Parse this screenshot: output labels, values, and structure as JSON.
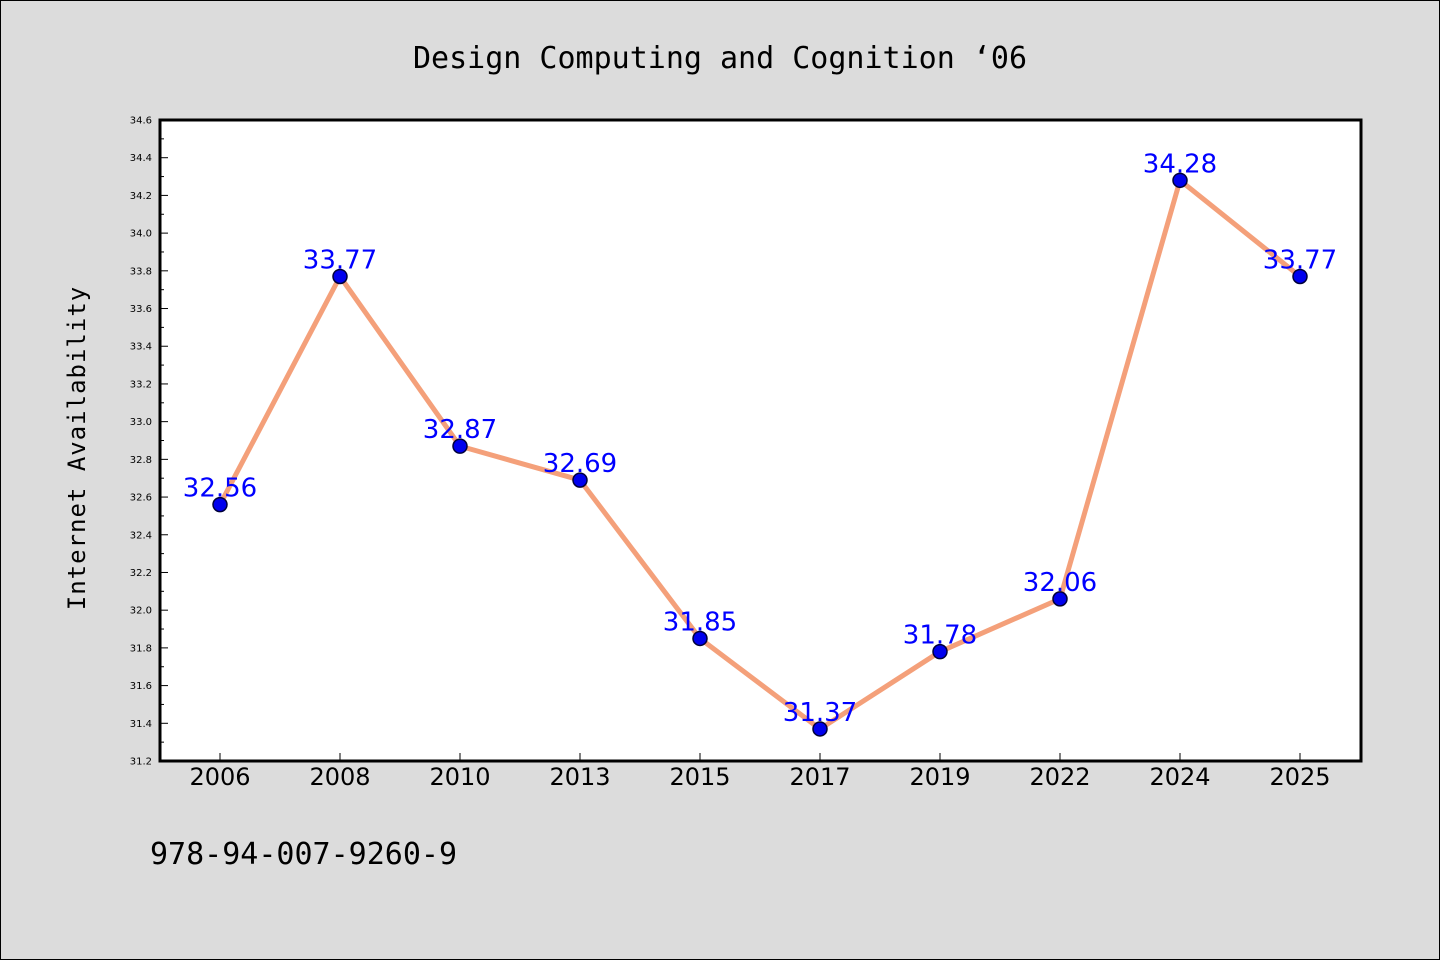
{
  "chart_data": {
    "type": "line",
    "title": "Design Computing and Cognition  ‘06",
    "xlabel": "",
    "ylabel": "Internet Availability",
    "categories": [
      "2006",
      "2008",
      "2010",
      "2013",
      "2015",
      "2017",
      "2019",
      "2022",
      "2024",
      "2025"
    ],
    "series": [
      {
        "values": [
          32.56,
          33.77,
          32.87,
          32.69,
          31.85,
          31.37,
          31.78,
          32.06,
          34.28,
          33.77
        ],
        "data_labels": [
          "32.56",
          "33.77",
          "32.87",
          "32.69",
          "31.85",
          "31.37",
          "31.78",
          "32.06",
          "34.28",
          "33.77"
        ]
      }
    ],
    "ylim": [
      31.2,
      34.6
    ],
    "yticks": [
      "31.2",
      "31.4",
      "31.6",
      "31.8",
      "32.0",
      "32.2",
      "32.4",
      "32.6",
      "32.8",
      "33.0",
      "33.2",
      "33.4",
      "33.6",
      "33.8",
      "34.0",
      "34.2",
      "34.4",
      "34.6"
    ],
    "grid": false,
    "legend": "none",
    "colors": {
      "line": "#f4a07a",
      "marker": "#0000ee",
      "marker_edge": "#00003a",
      "data_label": "#0000ff",
      "background": "#dcdcdc",
      "plot_background": "#ffffff"
    }
  },
  "footer": {
    "isbn": "978-94-007-9260-9"
  }
}
